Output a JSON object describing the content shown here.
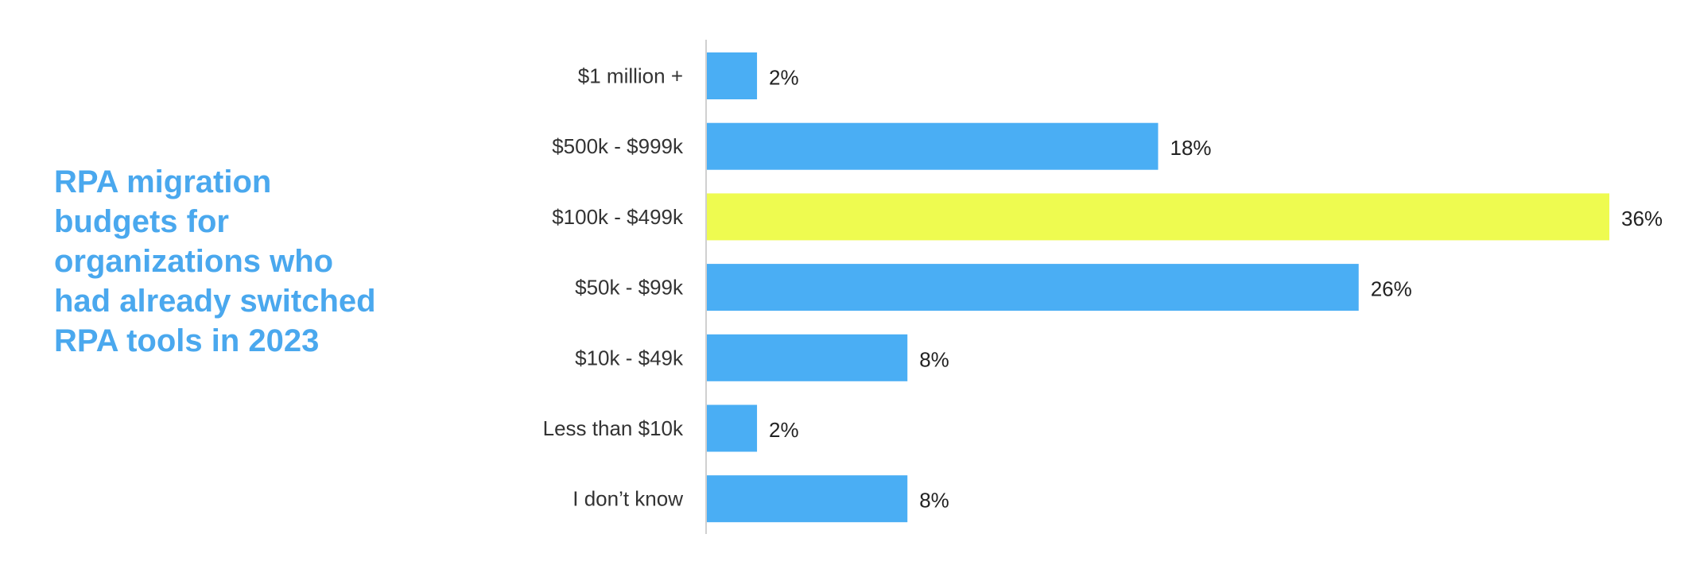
{
  "title": "RPA migration budgets for organizations who had already switched RPA tools in 2023",
  "colors": {
    "title": "#4aa8ee",
    "bar": "#4aaef4",
    "highlight": "#eefb50",
    "axis": "#d0d0d0"
  },
  "chart_data": {
    "type": "bar",
    "orientation": "horizontal",
    "title": "RPA migration budgets for organizations who had already switched RPA tools in 2023",
    "xlabel": "",
    "ylabel": "",
    "xlim": [
      0,
      36
    ],
    "grid": false,
    "legend": "none",
    "highlight_index": 2,
    "categories": [
      "$1 million +",
      "$500k - $999k",
      "$100k - $499k",
      "$50k - $99k",
      "$10k - $49k",
      "Less than $10k",
      "I don’t know"
    ],
    "values": [
      2,
      18,
      36,
      26,
      8,
      2,
      8
    ],
    "value_labels": [
      "2%",
      "18%",
      "36%",
      "26%",
      "8%",
      "2%",
      "8%"
    ]
  }
}
